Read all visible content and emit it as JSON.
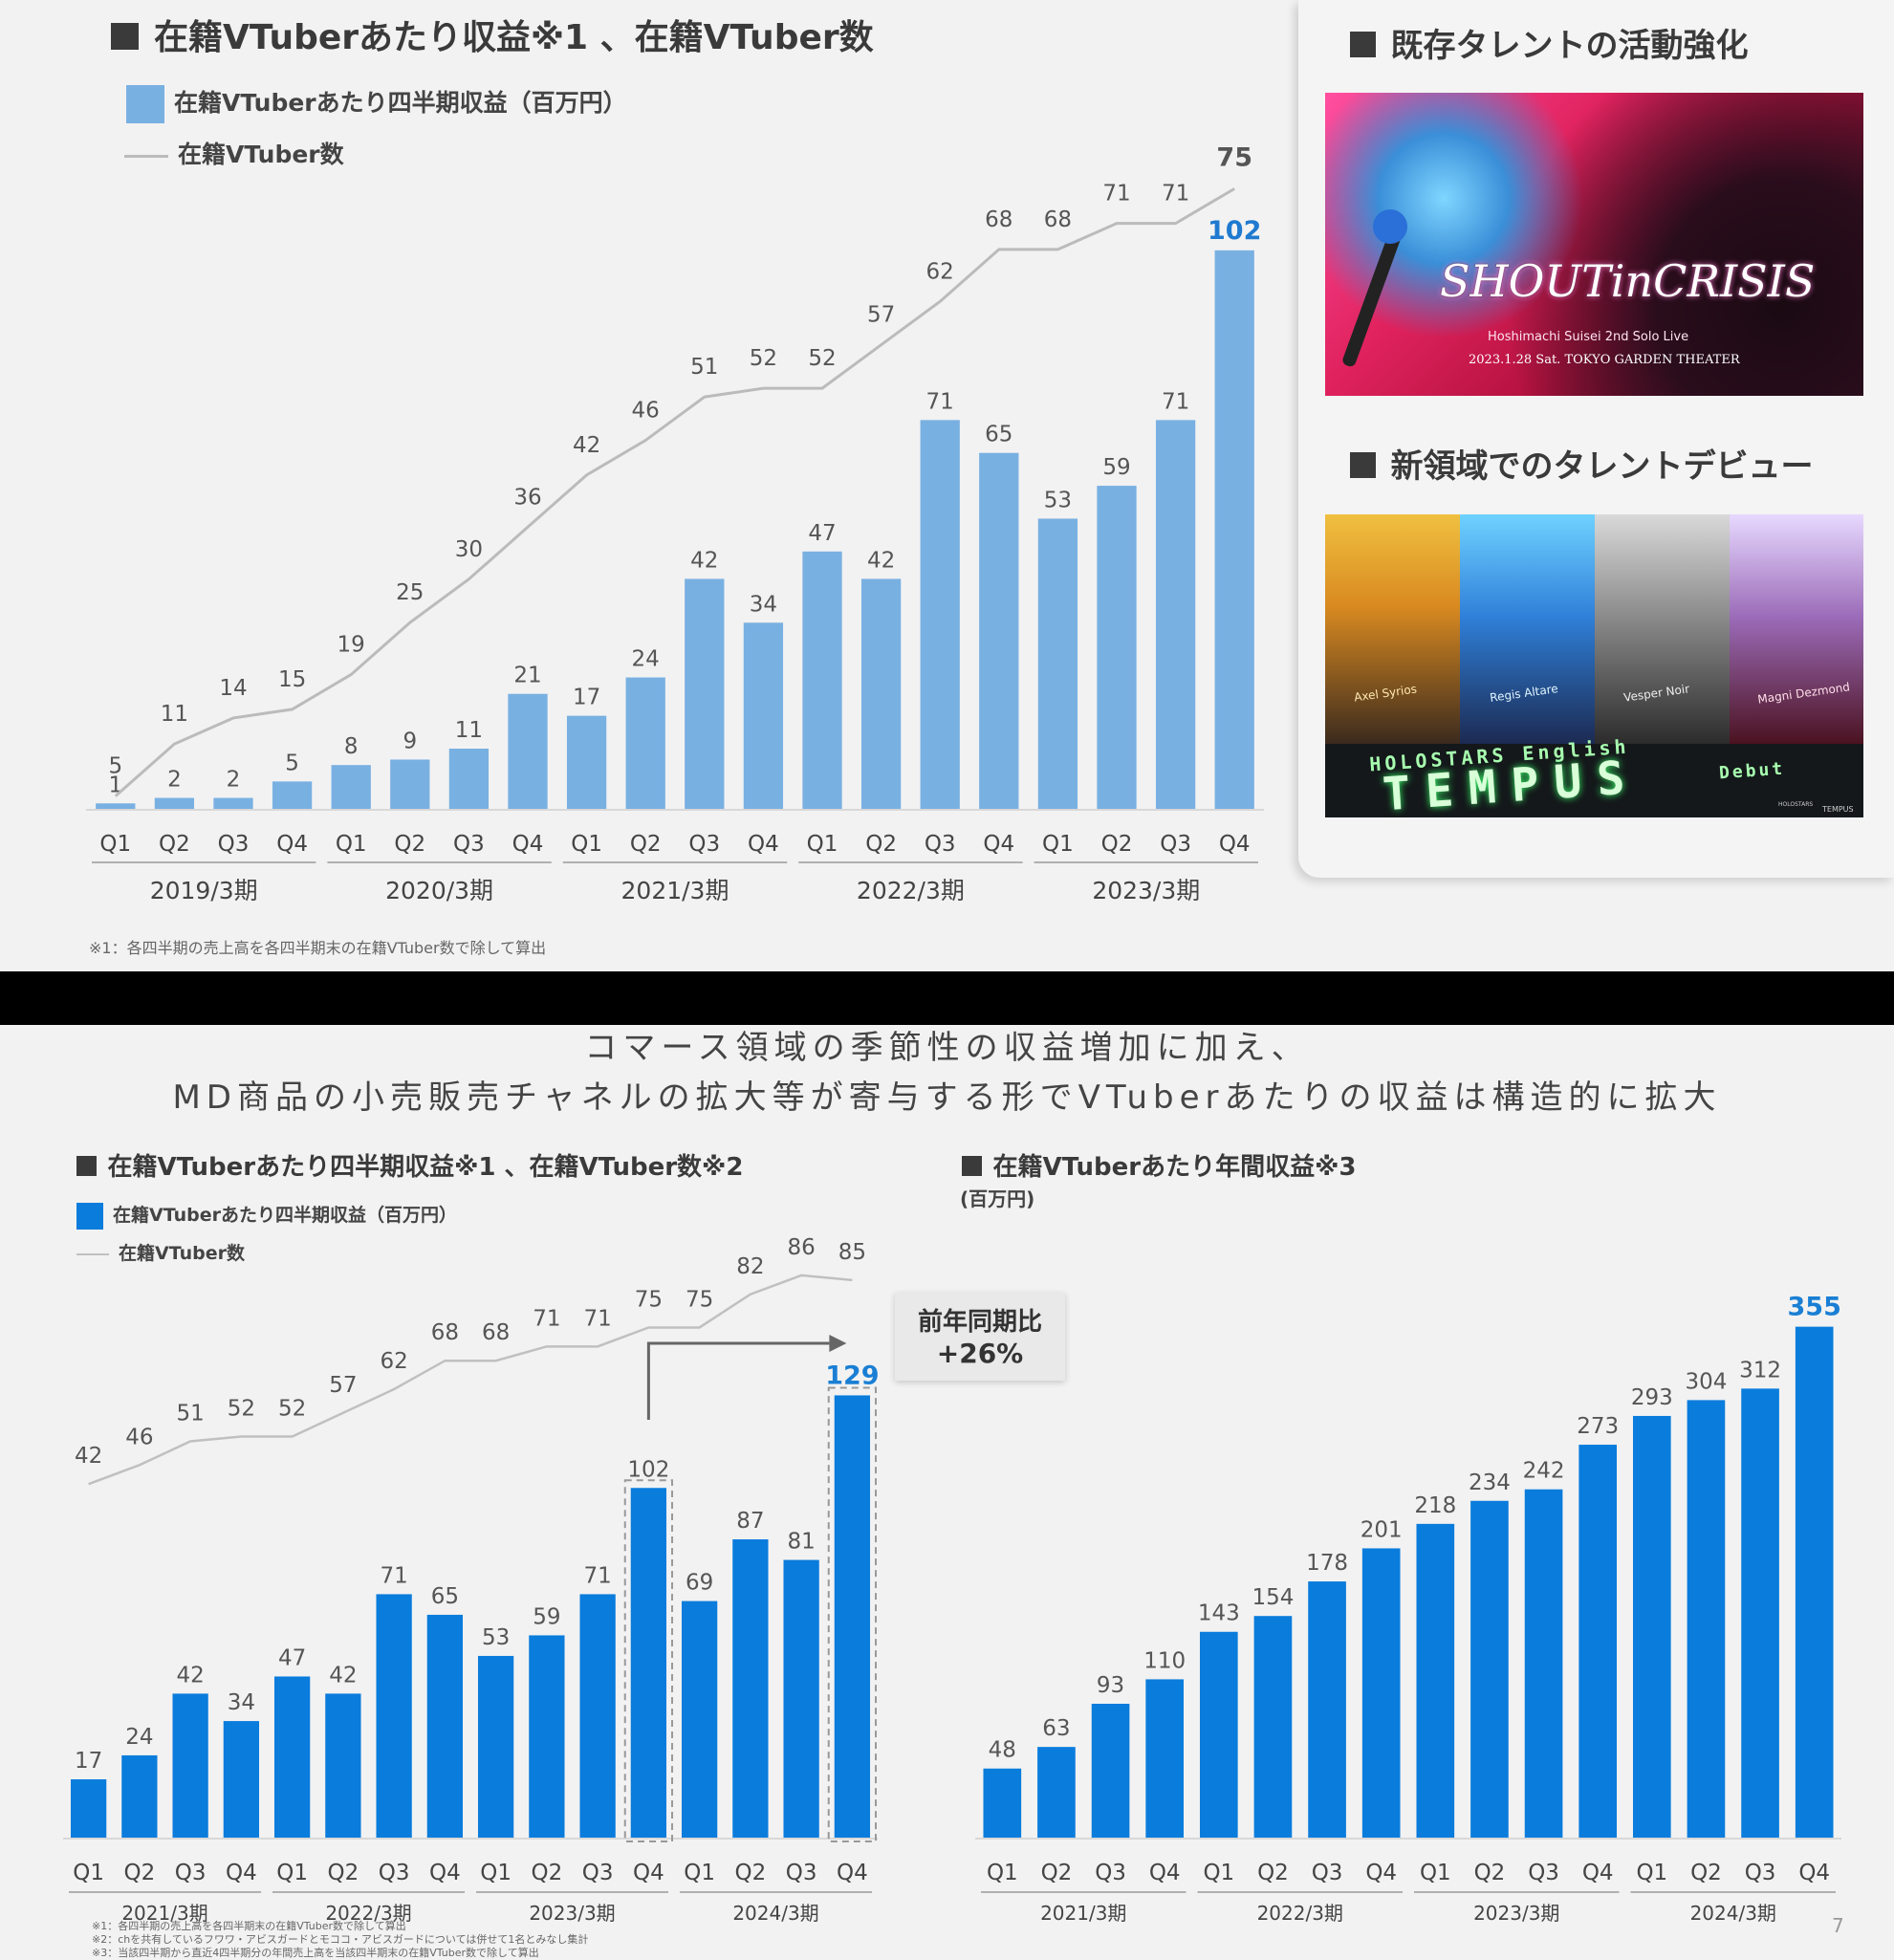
{
  "slide1": {
    "chart_title": "在籍VTuberあたり収益※1 、在籍VTuber数",
    "legend_bar": "在籍VTuberあたり四半期収益（百万円）",
    "legend_line": "在籍VTuber数",
    "footnote": "※1：各四半期の売上高を各四半期末の在籍VTuber数で除して算出",
    "right_panel": {
      "heading1": "既存タレントの活動強化",
      "heading2": "新領域でのタレントデビュー",
      "banner1": {
        "title": "SHOUTinCRISIS",
        "subtitle": "Hoshimachi Suisei 2nd Solo Live",
        "info": "2023.1.28 Sat. TOKYO GARDEN THEATER"
      },
      "banner2": {
        "line1": "HOLOSTARS English",
        "line2": "TEMPUS",
        "line3": "Debut",
        "logo1": "HOLOSTARS",
        "logo2": "TEMPUS",
        "names": [
          "Axel Syrios",
          "Regis Altare",
          "Vesper Noir",
          "Magni Dezmond"
        ]
      }
    }
  },
  "slide2": {
    "title_line1": "コマース領域の季節性の収益増加に加え、",
    "title_line2": "MD商品の小売販売チャネルの拡大等が寄与する形でVTuberあたりの収益は構造的に拡大",
    "left_title": "在籍VTuberあたり四半期収益※1 、在籍VTuber数※2",
    "legend_bar": "在籍VTuberあたり四半期収益（百万円）",
    "legend_line": "在籍VTuber数",
    "callout_line1": "前年同期比",
    "callout_line2": "+26%",
    "right_title": "在籍VTuberあたり年間収益※3",
    "right_unit": "(百万円)",
    "footnotes": [
      "※1：各四半期の売上高を各四半期末の在籍VTuber数で除して算出",
      "※2：chを共有しているフワワ・アビスガードとモココ・アビスガードについては併せて1名とみなし集計",
      "※3：当該四半期から直近4四半期分の年間売上高を当該四半期末の在籍VTuber数で除して算出"
    ],
    "page_number": "7"
  },
  "chart_data": [
    {
      "type": "bar",
      "title": "在籍VTuberあたり収益※1 、在籍VTuber数",
      "categories": [
        "Q1",
        "Q2",
        "Q3",
        "Q4",
        "Q1",
        "Q2",
        "Q3",
        "Q4",
        "Q1",
        "Q2",
        "Q3",
        "Q4",
        "Q1",
        "Q2",
        "Q3",
        "Q4",
        "Q1",
        "Q2",
        "Q3",
        "Q4"
      ],
      "periods": [
        "2019/3期",
        "2020/3期",
        "2021/3期",
        "2022/3期",
        "2023/3期"
      ],
      "series": [
        {
          "name": "在籍VTuberあたり四半期収益（百万円）",
          "type": "bar",
          "values": [
            1,
            2,
            2,
            5,
            8,
            9,
            11,
            21,
            17,
            24,
            42,
            34,
            47,
            42,
            71,
            65,
            53,
            59,
            71,
            102
          ]
        },
        {
          "name": "在籍VTuber数",
          "type": "line",
          "values": [
            5,
            11,
            14,
            15,
            19,
            25,
            30,
            36,
            42,
            46,
            51,
            52,
            52,
            57,
            62,
            68,
            68,
            71,
            71,
            75
          ]
        }
      ],
      "ylim_bar": [
        0,
        110
      ],
      "ylim_line": [
        0,
        80
      ],
      "colors": {
        "bar": "#79b0e2",
        "line": "#bbbbbb",
        "highlight": "#1f7ad0"
      },
      "grid": false
    },
    {
      "type": "bar",
      "title": "在籍VTuberあたり四半期収益※1 、在籍VTuber数※2",
      "categories": [
        "Q1",
        "Q2",
        "Q3",
        "Q4",
        "Q1",
        "Q2",
        "Q3",
        "Q4",
        "Q1",
        "Q2",
        "Q3",
        "Q4",
        "Q1",
        "Q2",
        "Q3",
        "Q4"
      ],
      "periods": [
        "2021/3期",
        "2022/3期",
        "2023/3期",
        "2024/3期"
      ],
      "series": [
        {
          "name": "在籍VTuberあたり四半期収益（百万円）",
          "type": "bar",
          "values": [
            17,
            24,
            42,
            34,
            47,
            42,
            71,
            65,
            53,
            59,
            71,
            102,
            69,
            87,
            81,
            129
          ]
        },
        {
          "name": "在籍VTuber数",
          "type": "line",
          "values": [
            42,
            46,
            51,
            52,
            52,
            57,
            62,
            68,
            68,
            71,
            71,
            75,
            75,
            82,
            86,
            85
          ]
        }
      ],
      "ylim_bar": [
        0,
        140
      ],
      "ylim_line": [
        0,
        95
      ],
      "annotation": {
        "text": "前年同期比 +26%",
        "from_index": 11,
        "to_index": 15
      },
      "colors": {
        "bar": "#0a7cdc",
        "line": "#c0c0c0",
        "highlight": "#1a7fd4"
      },
      "grid": false
    },
    {
      "type": "bar",
      "title": "在籍VTuberあたり年間収益※3",
      "ylabel": "(百万円)",
      "categories": [
        "Q1",
        "Q2",
        "Q3",
        "Q4",
        "Q1",
        "Q2",
        "Q3",
        "Q4",
        "Q1",
        "Q2",
        "Q3",
        "Q4",
        "Q1",
        "Q2",
        "Q3",
        "Q4"
      ],
      "periods": [
        "2021/3期",
        "2022/3期",
        "2023/3期",
        "2024/3期"
      ],
      "values": [
        48,
        63,
        93,
        110,
        143,
        154,
        178,
        201,
        218,
        234,
        242,
        273,
        293,
        304,
        312,
        355
      ],
      "ylim": [
        0,
        380
      ],
      "colors": {
        "bar": "#0a7cdc",
        "highlight": "#1a7fd4"
      },
      "grid": false
    }
  ]
}
